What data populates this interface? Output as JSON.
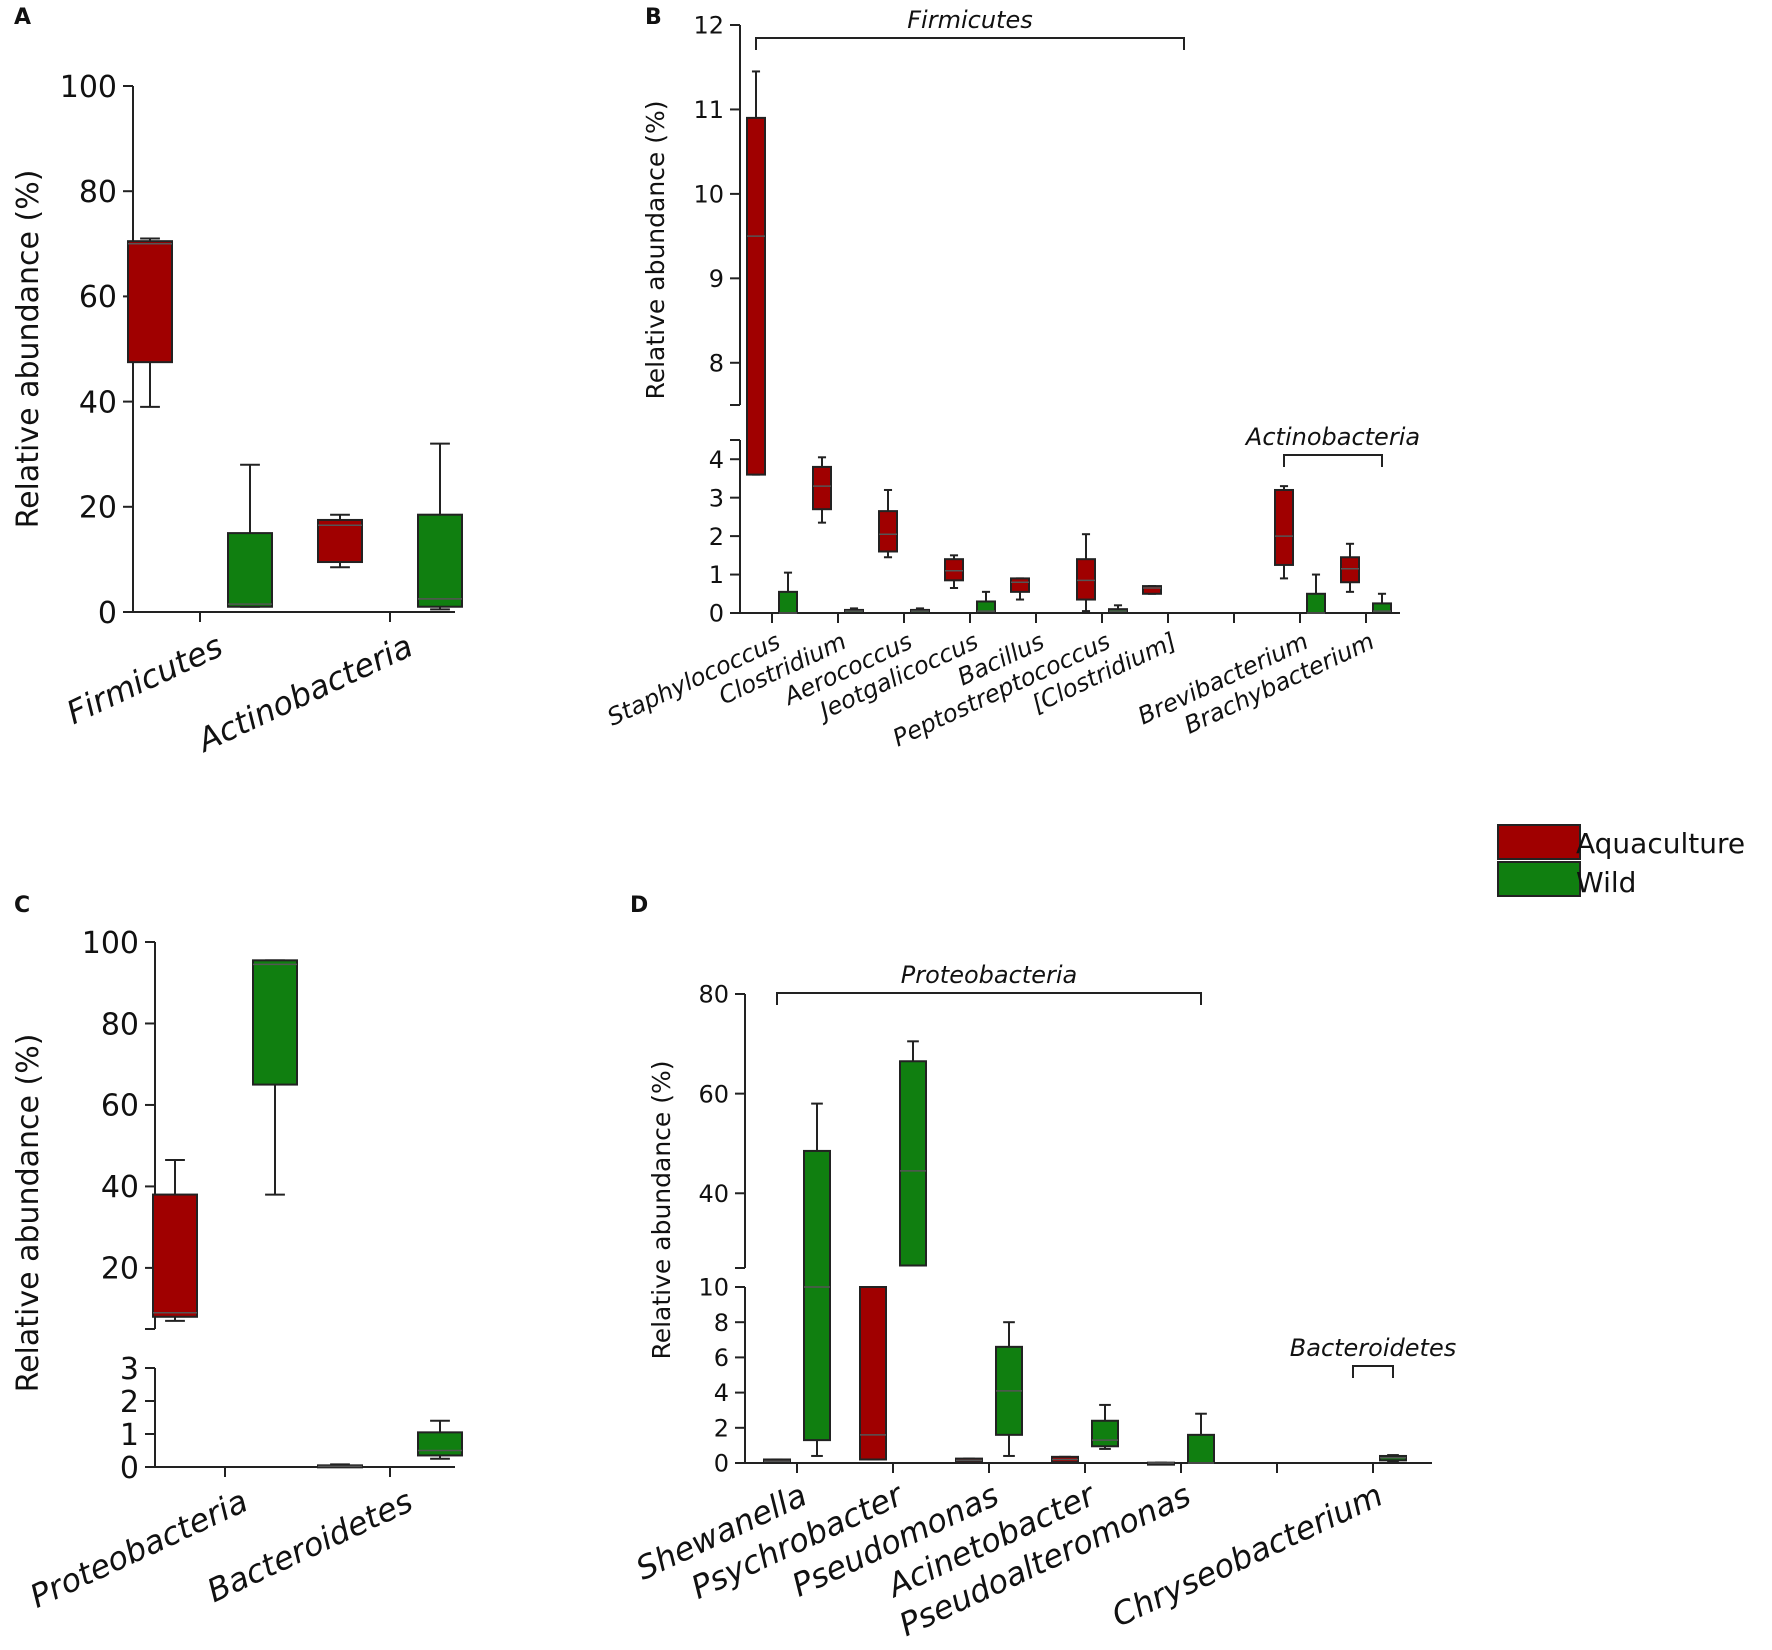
{
  "figure": {
    "legend": [
      {
        "label": "Aquaculture",
        "color": "#a00000"
      },
      {
        "label": "Wild",
        "color": "#107f10"
      }
    ]
  },
  "colors": {
    "Aquaculture": "#a00000",
    "Wild": "#107f10",
    "axis": "#222222",
    "median": "#555555"
  },
  "chart_data": [
    {
      "panel": "A",
      "type": "box",
      "ylabel": "Relative abundance (%)",
      "ylim": [
        0,
        100
      ],
      "yticks": [
        0,
        20,
        40,
        60,
        80,
        100
      ],
      "categories": [
        "Firmicutes",
        "Actinobacteria"
      ],
      "series": [
        {
          "name": "Aquaculture",
          "boxes": [
            {
              "min": 39,
              "q1": 47.5,
              "median": 70,
              "q3": 70.5,
              "max": 71
            },
            {
              "min": 8.5,
              "q1": 9.5,
              "median": 16.5,
              "q3": 17.5,
              "max": 18.5
            }
          ]
        },
        {
          "name": "Wild",
          "boxes": [
            {
              "min": 1,
              "q1": 1,
              "median": 1.5,
              "q3": 15,
              "max": 28
            },
            {
              "min": 0.5,
              "q1": 1,
              "median": 2.5,
              "q3": 18.5,
              "max": 32
            }
          ]
        }
      ]
    },
    {
      "panel": "B",
      "type": "box",
      "ylabel": "Relative abundance (%)",
      "axis_break": {
        "lower": [
          0,
          4.5
        ],
        "upper": [
          7.5,
          12
        ]
      },
      "yticks_lower": [
        0,
        1,
        2,
        3,
        4
      ],
      "yticks_upper": [
        8,
        9,
        10,
        11,
        12
      ],
      "categories": [
        "Staphylococcus",
        "Clostridium",
        "Aerococcus",
        "Jeotgalicoccus",
        "Bacillus",
        "Peptostreptococcus",
        "[Clostridium]",
        "",
        "Brevibacterium",
        "Brachybacterium"
      ],
      "groups": [
        {
          "label": "Firmicutes",
          "from": 0,
          "to": 6
        },
        {
          "label": "Actinobacteria",
          "from": 8,
          "to": 9
        }
      ],
      "series": [
        {
          "name": "Aquaculture",
          "boxes": [
            {
              "min": 3.6,
              "q1": 3.6,
              "median": 9.5,
              "q3": 10.9,
              "max": 11.45
            },
            {
              "min": 2.35,
              "q1": 2.7,
              "median": 3.3,
              "q3": 3.8,
              "max": 4.05
            },
            {
              "min": 1.45,
              "q1": 1.6,
              "median": 2.05,
              "q3": 2.65,
              "max": 3.2
            },
            {
              "min": 0.65,
              "q1": 0.85,
              "median": 1.1,
              "q3": 1.4,
              "max": 1.5
            },
            {
              "min": 0.35,
              "q1": 0.55,
              "median": 0.8,
              "q3": 0.9,
              "max": 0.9
            },
            {
              "min": 0.05,
              "q1": 0.35,
              "median": 0.85,
              "q3": 1.4,
              "max": 2.05
            },
            {
              "min": 0.5,
              "q1": 0.5,
              "median": 0.65,
              "q3": 0.7,
              "max": 0.7
            },
            null,
            {
              "min": 0.9,
              "q1": 1.25,
              "median": 2.0,
              "q3": 3.2,
              "max": 3.3
            },
            {
              "min": 0.55,
              "q1": 0.8,
              "median": 1.15,
              "q3": 1.45,
              "max": 1.8
            }
          ]
        },
        {
          "name": "Wild",
          "boxes": [
            {
              "min": 0,
              "q1": 0,
              "median": 0,
              "q3": 0.55,
              "max": 1.05
            },
            {
              "min": 0,
              "q1": 0,
              "median": 0.05,
              "q3": 0.08,
              "max": 0.12
            },
            {
              "min": 0,
              "q1": 0,
              "median": 0.05,
              "q3": 0.08,
              "max": 0.12
            },
            {
              "min": 0,
              "q1": 0,
              "median": 0.05,
              "q3": 0.3,
              "max": 0.55
            },
            null,
            {
              "min": 0,
              "q1": 0,
              "median": 0.05,
              "q3": 0.1,
              "max": 0.2
            },
            null,
            null,
            {
              "min": 0,
              "q1": 0,
              "median": 0,
              "q3": 0.5,
              "max": 1.0
            },
            {
              "min": 0,
              "q1": 0,
              "median": 0.05,
              "q3": 0.25,
              "max": 0.5
            }
          ]
        }
      ]
    },
    {
      "panel": "C",
      "type": "box",
      "ylabel": "Relative abundance (%)",
      "axis_break": {
        "lower": [
          0,
          3
        ],
        "upper": [
          5,
          100
        ]
      },
      "yticks_lower": [
        0,
        1,
        2,
        3
      ],
      "yticks_upper": [
        20,
        40,
        60,
        80,
        100
      ],
      "categories": [
        "Proteobacteria",
        "Bacteroidetes"
      ],
      "series": [
        {
          "name": "Aquaculture",
          "boxes": [
            {
              "min": 7,
              "q1": 8,
              "median": 9,
              "q3": 38,
              "max": 46.5
            },
            {
              "min": 0,
              "q1": 0,
              "median": 0.02,
              "q3": 0.05,
              "max": 0.08
            }
          ]
        },
        {
          "name": "Wild",
          "boxes": [
            {
              "min": 38,
              "q1": 65,
              "median": 94.5,
              "q3": 95.5,
              "max": 95.5
            },
            {
              "min": 0.25,
              "q1": 0.35,
              "median": 0.5,
              "q3": 1.05,
              "max": 1.4
            }
          ]
        }
      ]
    },
    {
      "panel": "D",
      "type": "box",
      "ylabel": "Relative abundance (%)",
      "axis_break": {
        "lower": [
          0,
          10
        ],
        "upper": [
          25,
          80
        ]
      },
      "yticks_lower": [
        0,
        2,
        4,
        6,
        8,
        10
      ],
      "yticks_upper": [
        40,
        60,
        80
      ],
      "categories": [
        "Shewanella",
        "Psychrobacter",
        "Pseudomonas",
        "Acinetobacter",
        "Pseudoalteromonas",
        "",
        "Chryseobacterium"
      ],
      "groups": [
        {
          "label": "Proteobacteria",
          "from": 0,
          "to": 4
        },
        {
          "label": "Bacteroidetes",
          "from": 6,
          "to": 6
        }
      ],
      "series": [
        {
          "name": "Aquaculture",
          "boxes": [
            {
              "min": 0,
              "q1": 0.02,
              "median": 0.1,
              "q3": 0.2,
              "max": 0.2
            },
            {
              "min": 0.2,
              "q1": 0.2,
              "median": 1.6,
              "q3": 10.5,
              "max": 10.5
            },
            {
              "min": 0,
              "q1": 0.05,
              "median": 0.15,
              "q3": 0.25,
              "max": 0.25
            },
            {
              "min": 0,
              "q1": 0.05,
              "median": 0.2,
              "q3": 0.35,
              "max": 0.35
            },
            {
              "min": 0,
              "q1": 0,
              "median": 0,
              "q3": 0.02,
              "max": 0.02
            },
            null,
            null
          ]
        },
        {
          "name": "Wild",
          "boxes": [
            {
              "min": 0.4,
              "q1": 1.3,
              "median": 20,
              "q3": 48.5,
              "max": 58
            },
            {
              "min": 25.5,
              "q1": 25.5,
              "median": 44.5,
              "q3": 66.5,
              "max": 70.5
            },
            {
              "min": 0.4,
              "q1": 1.6,
              "median": 4.1,
              "q3": 6.6,
              "max": 8.0
            },
            {
              "min": 0.8,
              "q1": 0.95,
              "median": 1.3,
              "q3": 2.4,
              "max": 3.3
            },
            {
              "min": 0,
              "q1": 0,
              "median": 0,
              "q3": 1.6,
              "max": 2.8
            },
            null,
            {
              "min": 0.1,
              "q1": 0.15,
              "median": 0.3,
              "q3": 0.4,
              "max": 0.45
            }
          ]
        }
      ]
    }
  ]
}
